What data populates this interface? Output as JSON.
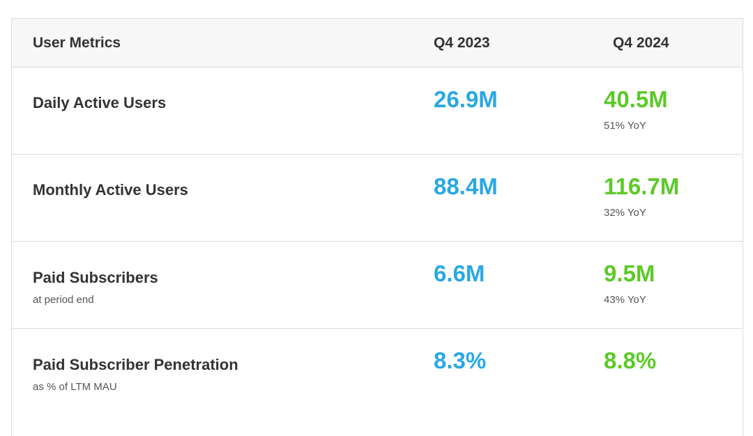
{
  "table": {
    "header": [
      "User Metrics",
      "Q4 2023",
      "Q4 2024"
    ],
    "rows": [
      {
        "label": "Daily Active Users",
        "q4_2023": "26.9M",
        "q4_2024": "40.5M",
        "yoy": "51% YoY"
      },
      {
        "label": "Monthly Active Users",
        "q4_2023": "88.4M",
        "q4_2024": "116.7M",
        "yoy": "32% YoY"
      },
      {
        "label": "Paid Subscribers",
        "sublabel": "at period end",
        "q4_2023": "6.6M",
        "q4_2024": "9.5M",
        "yoy": "43% YoY"
      },
      {
        "label": "Paid Subscriber Penetration",
        "sublabel": "as % of LTM MAU",
        "q4_2023": "8.3%",
        "q4_2024": "8.8%"
      }
    ]
  }
}
